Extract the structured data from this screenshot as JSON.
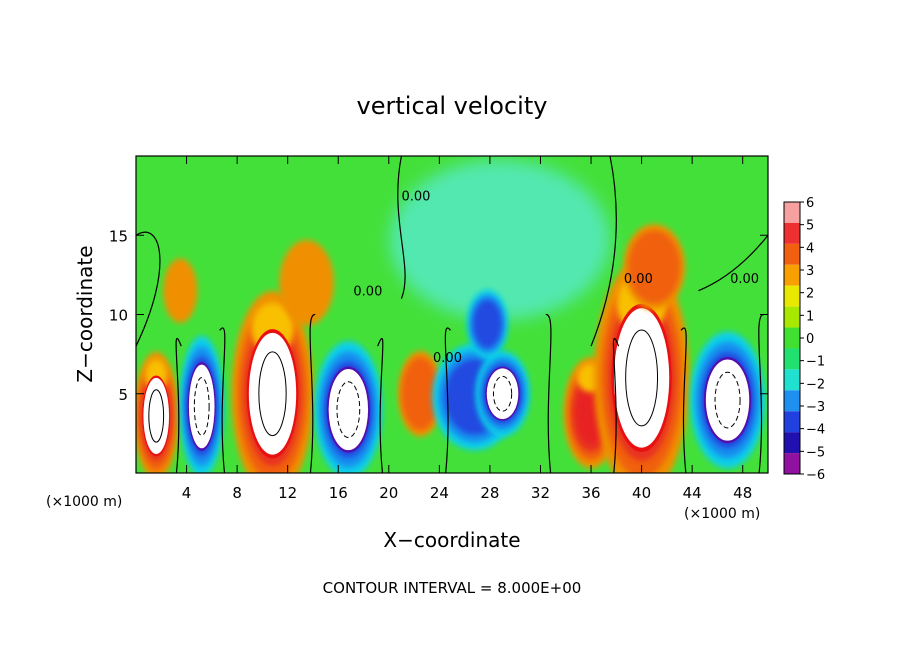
{
  "chart_data": {
    "type": "heatmap",
    "title": "vertical velocity",
    "xlabel": "X−coordinate",
    "ylabel": "Z−coordinate",
    "x_unit_left": "(×1000 m)",
    "x_unit_right": "(×1000 m)",
    "footer": "CONTOUR INTERVAL = 8.000E+00",
    "xlim": [
      0,
      50
    ],
    "ylim": [
      0,
      20
    ],
    "x_ticks": [
      4,
      8,
      12,
      16,
      20,
      24,
      28,
      32,
      36,
      40,
      44,
      48
    ],
    "x_tick_labels": [
      "4",
      "8",
      "12",
      "16",
      "20",
      "24",
      "28",
      "32",
      "36",
      "40",
      "44",
      "48"
    ],
    "y_ticks": [
      5,
      10,
      15
    ],
    "y_tick_labels": [
      "5",
      "10",
      "15"
    ],
    "contour_labels": [
      {
        "text": "0.00",
        "x": 21,
        "y": 17.2
      },
      {
        "text": "0.00",
        "x": 17.2,
        "y": 11.2
      },
      {
        "text": "0.00",
        "x": 23.5,
        "y": 7.0
      },
      {
        "text": "0.00",
        "x": 38.6,
        "y": 12.0
      },
      {
        "text": "0.00",
        "x": 47.0,
        "y": 12.0
      }
    ],
    "colorbar": {
      "levels": [
        "6",
        "5",
        "4",
        "3",
        "2",
        "1",
        "0",
        "−1",
        "−2",
        "−3",
        "−4",
        "−5",
        "−6"
      ],
      "colors": [
        "#f7a0a0",
        "#ef3030",
        "#f06010",
        "#f8a000",
        "#e8e800",
        "#a8e800",
        "#40e030",
        "#20e070",
        "#20e0d0",
        "#2090f0",
        "#2040e0",
        "#2010b0",
        "#9010a0"
      ]
    },
    "cells": [
      {
        "x": 1.6,
        "y": 3.6,
        "rx": 1.3,
        "ry": 3.0,
        "v": 8
      },
      {
        "x": 5.2,
        "y": 4.2,
        "rx": 1.3,
        "ry": 3.3,
        "v": -8
      },
      {
        "x": 10.8,
        "y": 5.0,
        "rx": 2.4,
        "ry": 4.8,
        "v": 8
      },
      {
        "x": 16.8,
        "y": 4.0,
        "rx": 2.0,
        "ry": 3.2,
        "v": -8
      },
      {
        "x": 22.5,
        "y": 5.0,
        "rx": 1.3,
        "ry": 2.0,
        "v": 3
      },
      {
        "x": 26.8,
        "y": 4.8,
        "rx": 2.5,
        "ry": 2.5,
        "v": -5
      },
      {
        "x": 29.0,
        "y": 5.0,
        "rx": 1.6,
        "ry": 2.0,
        "v": -8
      },
      {
        "x": 27.8,
        "y": 9.4,
        "rx": 1.2,
        "ry": 1.6,
        "v": -6
      },
      {
        "x": 36.0,
        "y": 3.8,
        "rx": 1.6,
        "ry": 2.6,
        "v": 7
      },
      {
        "x": 40.0,
        "y": 6.0,
        "rx": 2.8,
        "ry": 5.5,
        "v": 8
      },
      {
        "x": 46.8,
        "y": 4.6,
        "rx": 2.2,
        "ry": 3.2,
        "v": -8
      },
      {
        "x": 13.5,
        "y": 12.0,
        "rx": 1.6,
        "ry": 2.0,
        "v": 2
      },
      {
        "x": 3.5,
        "y": 11.5,
        "rx": 1.0,
        "ry": 1.5,
        "v": 2
      },
      {
        "x": 41.0,
        "y": 13.0,
        "rx": 1.8,
        "ry": 2.0,
        "v": 3
      }
    ]
  }
}
